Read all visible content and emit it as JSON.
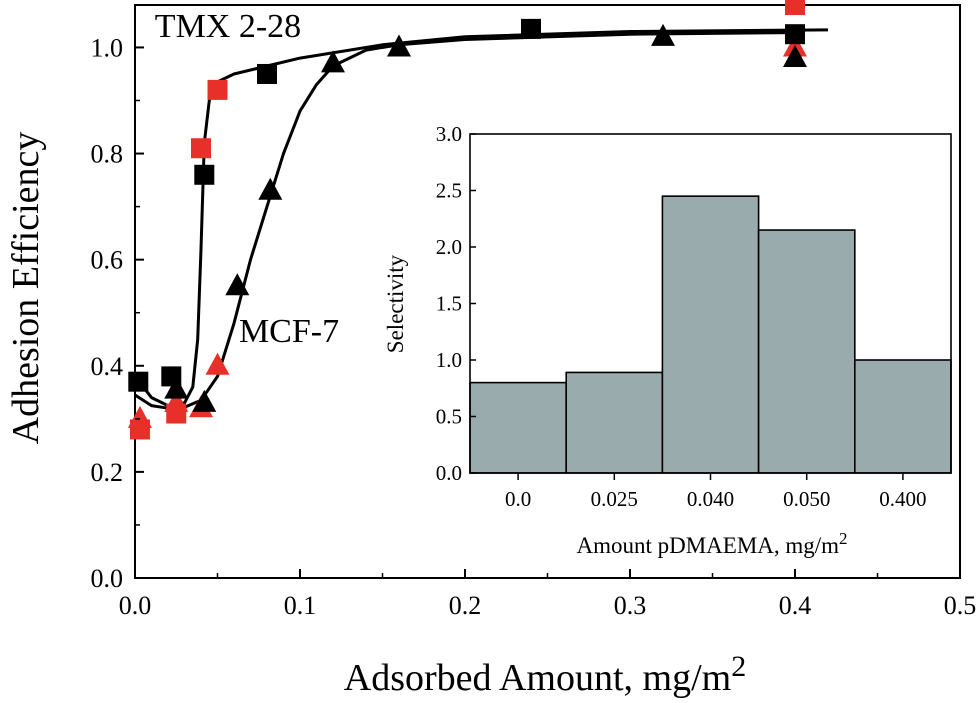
{
  "chart_data": [
    {
      "type": "scatter",
      "xlabel": "Adsorbed Amount, mg/m",
      "xlabel_sup": "2",
      "ylabel": "Adhesion Efficiency",
      "xlim": [
        0.0,
        0.5
      ],
      "ylim": [
        0.0,
        1.08
      ],
      "xticks": [
        "0.0",
        "0.1",
        "0.2",
        "0.3",
        "0.4",
        "0.5"
      ],
      "yticks": [
        "0.0",
        "0.2",
        "0.4",
        "0.6",
        "0.8",
        "1.0"
      ],
      "grid": false,
      "annotations": [
        {
          "text": "TMX 2-28",
          "x": 0.012,
          "y": 1.02
        },
        {
          "text": "MCF-7",
          "x": 0.063,
          "y": 0.445
        }
      ],
      "series": [
        {
          "marker": "square",
          "color": "#e8302a",
          "points": [
            [
              0.003,
              0.28
            ],
            [
              0.025,
              0.31
            ],
            [
              0.04,
              0.81
            ],
            [
              0.05,
              0.92
            ],
            [
              0.4,
              1.08
            ]
          ]
        },
        {
          "marker": "triangle",
          "color": "#e8302a",
          "points": [
            [
              0.003,
              0.3
            ],
            [
              0.025,
              0.33
            ],
            [
              0.04,
              0.32
            ],
            [
              0.05,
              0.4
            ],
            [
              0.4,
              1.0
            ]
          ]
        },
        {
          "marker": "square",
          "color": "#000000",
          "points": [
            [
              0.002,
              0.37
            ],
            [
              0.022,
              0.38
            ],
            [
              0.042,
              0.76
            ],
            [
              0.08,
              0.95
            ],
            [
              0.24,
              1.035
            ],
            [
              0.4,
              1.025
            ]
          ]
        },
        {
          "marker": "triangle",
          "color": "#000000",
          "points": [
            [
              0.025,
              0.355
            ],
            [
              0.042,
              0.33
            ],
            [
              0.062,
              0.55
            ],
            [
              0.082,
              0.73
            ],
            [
              0.12,
              0.97
            ],
            [
              0.16,
              1.0
            ],
            [
              0.32,
              1.02
            ],
            [
              0.4,
              0.98
            ]
          ]
        }
      ],
      "fit_curves": [
        {
          "label": "TMX 2-28",
          "x": [
            0.0,
            0.01,
            0.02,
            0.03,
            0.035,
            0.038,
            0.04,
            0.042,
            0.045,
            0.05,
            0.06,
            0.08,
            0.1,
            0.15,
            0.2,
            0.3,
            0.42
          ],
          "y": [
            0.38,
            0.34,
            0.325,
            0.33,
            0.36,
            0.45,
            0.62,
            0.82,
            0.9,
            0.935,
            0.95,
            0.965,
            0.98,
            1.005,
            1.02,
            1.03,
            1.033
          ]
        },
        {
          "label": "MCF-7",
          "x": [
            0.0,
            0.01,
            0.02,
            0.03,
            0.04,
            0.05,
            0.06,
            0.07,
            0.08,
            0.09,
            0.1,
            0.11,
            0.12,
            0.14,
            0.16,
            0.2,
            0.3,
            0.4
          ],
          "y": [
            0.345,
            0.325,
            0.32,
            0.322,
            0.335,
            0.38,
            0.48,
            0.6,
            0.7,
            0.8,
            0.88,
            0.93,
            0.965,
            0.995,
            1.005,
            1.015,
            1.025,
            1.028
          ]
        }
      ]
    },
    {
      "type": "bar",
      "categories": [
        "0.0",
        "0.025",
        "0.040",
        "0.050",
        "0.400"
      ],
      "values": [
        0.8,
        0.89,
        2.45,
        2.15,
        1.0
      ],
      "color": "#9aabad",
      "xlabel": "Amount pDMAEMA, mg/m",
      "xlabel_sup": "2",
      "ylabel": "Selectivity",
      "ylim": [
        0.0,
        3.0
      ],
      "yticks": [
        "0.0",
        "0.5",
        "1.0",
        "1.5",
        "2.0",
        "2.5",
        "3.0"
      ],
      "grid": false
    }
  ]
}
